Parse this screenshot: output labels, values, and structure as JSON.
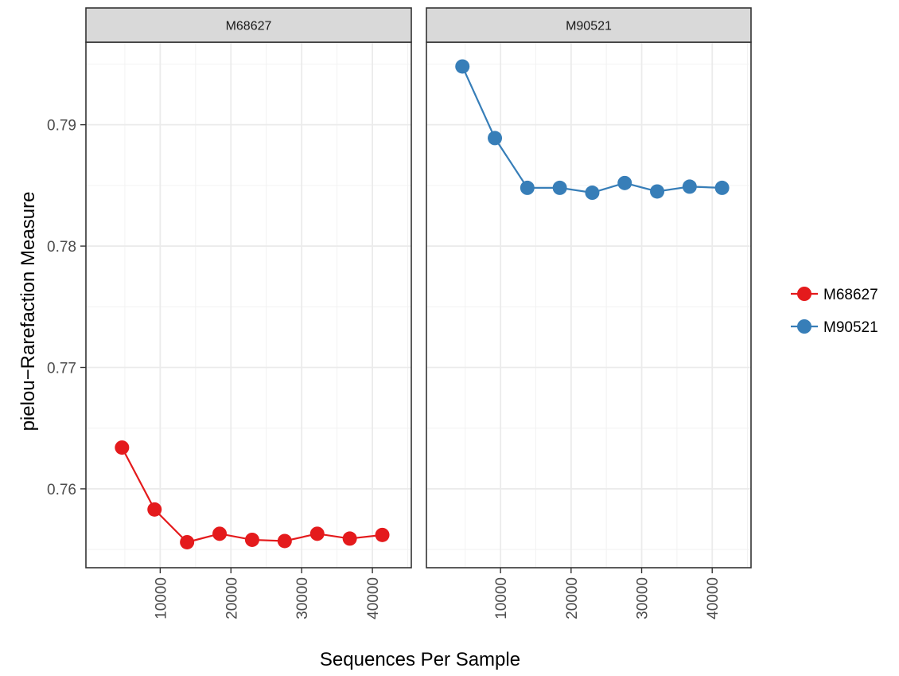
{
  "chart_data": {
    "type": "line",
    "facet_by": "sample",
    "xlabel": "Sequences Per Sample",
    "ylabel": "pielou−Rarefaction Measure",
    "x_ticks": [
      10000,
      20000,
      30000,
      40000
    ],
    "x_tick_labels": [
      "10000",
      "20000",
      "30000",
      "40000"
    ],
    "y_ticks": [
      0.76,
      0.77,
      0.78,
      0.79
    ],
    "y_tick_labels": [
      "0.76",
      "0.77",
      "0.78",
      "0.79"
    ],
    "xlim": [
      -500,
      45500
    ],
    "ylim": [
      0.7535,
      0.7968
    ],
    "grid": true,
    "legend_position": "right",
    "series": [
      {
        "name": "M68627",
        "color": "#e41a1c",
        "x": [
          4600,
          9200,
          13800,
          18400,
          23000,
          27600,
          32200,
          36800,
          41400
        ],
        "values": [
          0.7634,
          0.7583,
          0.7556,
          0.7563,
          0.7558,
          0.7557,
          0.7563,
          0.7559,
          0.7562
        ]
      },
      {
        "name": "M90521",
        "color": "#377eb8",
        "x": [
          4600,
          9200,
          13800,
          18400,
          23000,
          27600,
          32200,
          36800,
          41400
        ],
        "values": [
          0.7948,
          0.7889,
          0.7848,
          0.7848,
          0.7844,
          0.7852,
          0.7845,
          0.7849,
          0.7848
        ]
      }
    ]
  }
}
